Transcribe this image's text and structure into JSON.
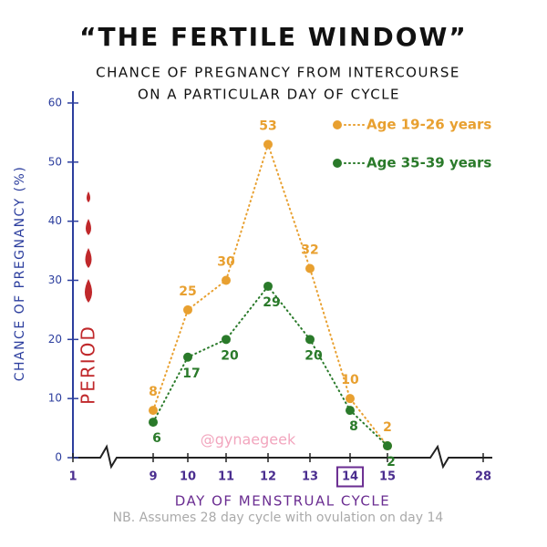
{
  "chart_data": {
    "type": "line",
    "title": "“THE FERTILE WINDOW”",
    "subtitle": [
      "CHANCE OF PREGNANCY FROM INTERCOURSE",
      "ON A PARTICULAR DAY OF CYCLE"
    ],
    "y_label": "CHANCE OF PREGNANCY (%)",
    "x_label": "DAY OF MENSTRUAL CYCLE",
    "categories": [
      "1",
      "9",
      "10",
      "11",
      "12",
      "13",
      "14",
      "15",
      "28"
    ],
    "highlighted_category": 6,
    "series": [
      {
        "name": "Age 19-26 years",
        "color": "#e8a030",
        "values": [
          null,
          8,
          25,
          30,
          53,
          32,
          10,
          2,
          null
        ]
      },
      {
        "name": "Age 35-39 years",
        "color": "#2a7a2a",
        "values": [
          null,
          6,
          17,
          20,
          29,
          20,
          8,
          2,
          null
        ]
      }
    ],
    "ylim": [
      0,
      62
    ],
    "yticks": [
      0,
      10,
      20,
      30,
      40,
      50,
      60
    ],
    "legend": "upper right",
    "annotations": [
      "PERIOD",
      "@gynaegeek",
      "NB. Assumes 28 day cycle with ovulation on day 14"
    ]
  }
}
